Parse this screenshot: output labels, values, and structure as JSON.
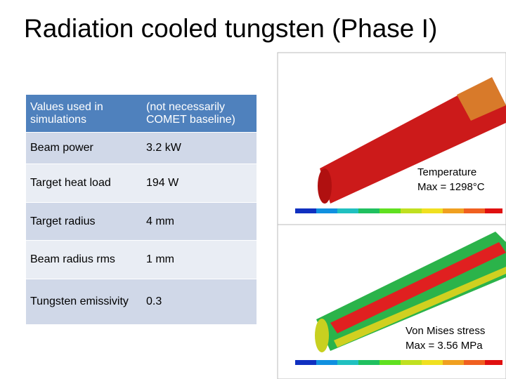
{
  "title": "Radiation cooled tungsten (Phase I)",
  "table": {
    "header": [
      "Values used in simulations",
      "(not necessarily COMET baseline)"
    ],
    "rows": [
      [
        "Beam power",
        "3.2 kW"
      ],
      [
        "Target heat load",
        "194 W"
      ],
      [
        "Target radius",
        "4 mm"
      ],
      [
        "Beam radius rms",
        "1 mm"
      ],
      [
        "Tungsten emissivity",
        "0.3"
      ]
    ]
  },
  "annotations": {
    "temperature": [
      "Temperature",
      "Max = 1298°C"
    ],
    "stress": [
      "Von Mises stress",
      "Max = 3.56 MPa"
    ]
  }
}
